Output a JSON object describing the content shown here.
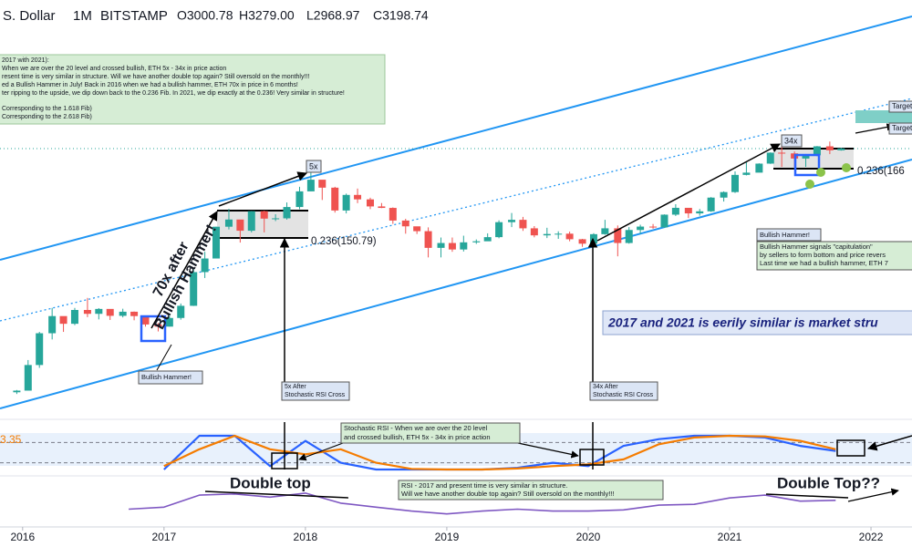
{
  "chart_data": {
    "type": "candlestick",
    "header": {
      "symbol": "S. Dollar",
      "interval": "1M",
      "exchange": "BITSTAMP",
      "ohlc": [
        "O3000.78",
        "H3279.00",
        "L2968.97",
        "C3198.74"
      ]
    },
    "log_scale": true,
    "ylim": [
      0.4,
      470000
    ],
    "xlim": [
      2015.84,
      2022.29
    ],
    "xticks": [
      2016,
      2017,
      2018,
      2019,
      2020,
      2021,
      2022
    ],
    "up_color": "#26a69a",
    "down_color": "#ef5350",
    "candles": {
      "x": [
        2015.92,
        2016.0,
        2016.08,
        2016.17,
        2016.25,
        2016.33,
        2016.42,
        2016.5,
        2016.58,
        2016.67,
        2016.75,
        2016.83,
        2016.92,
        2017.0,
        2017.08,
        2017.17,
        2017.25,
        2017.33,
        2017.42,
        2017.5,
        2017.58,
        2017.67,
        2017.75,
        2017.83,
        2017.92,
        2018.0,
        2018.08,
        2018.17,
        2018.25,
        2018.33,
        2018.42,
        2018.5,
        2018.58,
        2018.67,
        2018.75,
        2018.83,
        2018.92,
        2019.0,
        2019.08,
        2019.17,
        2019.25,
        2019.33,
        2019.42,
        2019.5,
        2019.58,
        2019.67,
        2019.75,
        2019.83,
        2019.92,
        2020.0,
        2020.08,
        2020.17,
        2020.25,
        2020.33,
        2020.42,
        2020.5,
        2020.58,
        2020.67,
        2020.75,
        2020.83,
        2020.92,
        2021.0,
        2021.08,
        2021.17,
        2021.25,
        2021.33,
        2021.42,
        2021.5,
        2021.58,
        2021.67,
        2021.75
      ],
      "open": [
        0.88,
        0.93,
        2.2,
        6.4,
        11.4,
        8.8,
        14.0,
        12.3,
        14.5,
        11.5,
        13.2,
        11.4,
        8.6,
        8.0,
        10.7,
        16.1,
        50,
        79,
        230,
        293,
        201,
        388,
        302,
        305,
        446,
        755,
        1118,
        855,
        397,
        670,
        577,
        455,
        433,
        283,
        233,
        198,
        113,
        133,
        107,
        136,
        141,
        162,
        268,
        290,
        218,
        172,
        180,
        182,
        151,
        130,
        179,
        218,
        133,
        206,
        231,
        225,
        345,
        434,
        360,
        386,
        612,
        737,
        1314,
        1417,
        1919,
        2773,
        2707,
        2275,
        2536,
        3433,
        3000.78
      ],
      "high": [
        0.95,
        2.6,
        6.7,
        15,
        9.6,
        15,
        21,
        14.9,
        12.8,
        14.6,
        13.3,
        11.4,
        9.0,
        11.5,
        17.4,
        55,
        99,
        230,
        420,
        250,
        390,
        395,
        350,
        520,
        880,
        1420,
        1000,
        880,
        700,
        830,
        610,
        510,
        440,
        300,
        230,
        225,
        160,
        160,
        170,
        150,
        184,
        285,
        365,
        320,
        235,
        222,
        197,
        195,
        153,
        185,
        290,
        240,
        227,
        246,
        252,
        348,
        490,
        395,
        418,
        623,
        755,
        1480,
        2040,
        1940,
        2800,
        4380,
        2890,
        2650,
        3470,
        4030,
        3279.0
      ],
      "low": [
        0.83,
        0.94,
        2.0,
        5.2,
        6.7,
        8.4,
        11,
        10.2,
        10,
        10.9,
        9.9,
        8,
        6.8,
        8,
        10.1,
        16,
        41,
        80,
        210,
        135,
        190,
        190,
        278,
        292,
        415,
        760,
        565,
        370,
        360,
        508,
        415,
        430,
        253,
        182,
        180,
        82,
        82,
        99,
        100,
        129,
        148,
        156,
        227,
        200,
        161,
        157,
        153,
        141,
        117,
        128,
        175,
        85,
        130,
        180,
        215,
        222,
        330,
        308,
        333,
        378,
        536,
        715,
        1290,
        1437,
        1900,
        1720,
        1720,
        1720,
        2460,
        2640,
        2968.97
      ],
      "close": [
        0.93,
        2.2,
        6.4,
        11.4,
        8.8,
        14.0,
        12.3,
        14.5,
        11.5,
        13.2,
        11.4,
        8.6,
        8.0,
        10.7,
        16.1,
        50,
        79,
        230,
        293,
        201,
        388,
        302,
        305,
        446,
        755,
        1118,
        855,
        397,
        670,
        577,
        455,
        433,
        283,
        233,
        198,
        113,
        133,
        107,
        136,
        141,
        162,
        268,
        290,
        218,
        172,
        180,
        182,
        151,
        130,
        179,
        218,
        133,
        206,
        231,
        225,
        345,
        434,
        360,
        386,
        612,
        737,
        1314,
        1417,
        1919,
        2773,
        2707,
        2275,
        2536,
        3433,
        3000.78,
        3198.74
      ]
    },
    "stoch_rsi": {
      "ylim": [
        0,
        100
      ],
      "levels": [
        80,
        20
      ],
      "x": [
        2017.0,
        2017.25,
        2017.5,
        2017.75,
        2018.0,
        2018.25,
        2018.5,
        2018.75,
        2019.0,
        2019.25,
        2019.5,
        2019.75,
        2020.0,
        2020.25,
        2020.5,
        2020.75,
        2021.0,
        2021.25,
        2021.5,
        2021.75
      ],
      "series": [
        {
          "color": "#2962ff",
          "values": [
            0,
            100,
            100,
            10,
            85,
            20,
            0,
            0,
            0,
            0,
            5,
            20,
            10,
            70,
            90,
            100,
            100,
            95,
            70,
            55
          ]
        },
        {
          "color": "#f57c00",
          "values": [
            10,
            60,
            100,
            60,
            45,
            60,
            20,
            2,
            0,
            0,
            3,
            10,
            15,
            30,
            75,
            95,
            100,
            98,
            85,
            60
          ]
        }
      ]
    },
    "rsi": {
      "ylim": [
        0,
        100
      ],
      "color": "#7e57c2",
      "x": [
        2016.75,
        2017.0,
        2017.25,
        2017.5,
        2017.75,
        2018.0,
        2018.25,
        2018.5,
        2018.75,
        2019.0,
        2019.25,
        2019.5,
        2019.75,
        2020.0,
        2020.25,
        2020.5,
        2020.75,
        2021.0,
        2021.25,
        2021.5,
        2021.75
      ],
      "values": [
        50,
        55,
        85,
        88,
        80,
        90,
        65,
        55,
        45,
        38,
        45,
        50,
        45,
        45,
        48,
        60,
        62,
        78,
        85,
        70,
        72
      ]
    },
    "annotations": {
      "note": [
        "2017 with 2021):",
        "When we are over the 20 level and crossed bullish, ETH 5x - 34x in price action",
        "resent time is very similar in structure. Will we have another double top again? Still oversold on the monthly!!!",
        "ed a Bullish Hammer in July! Back in 2016 when we had a bullish hammer, ETH 70x in price in 6 months!",
        "ter ripping to the upside, we dip down back to the 0.236 Fib. In 2021, we dip exactly at the 0.236! Very similar in structure!",
        "Corresponding to the 1.618 Fib)",
        "Corresponding to the 2.618 Fib)"
      ],
      "five_x": "5x",
      "thirty_four_x": "34x",
      "targets": [
        "Target",
        "Target"
      ],
      "fib_labels": [
        "0.236(150.79)",
        "0.236(166"
      ],
      "seventy_x": [
        "70x after",
        "Bullish Hammer!"
      ],
      "hammer_2016": "Bullish Hammer!",
      "cross_2017": [
        "5x After",
        "Stochastic RSI Cross"
      ],
      "cross_2020": [
        "34x After",
        "Stochastic RSI Cross"
      ],
      "hammer_2021": [
        "Bullish Hammer!",
        "Bullish Hammer signals \"capitulation\"",
        "by sellers to form bottom and price revers",
        "Last time we had a bullish hammer, ETH 7"
      ],
      "similar": "2017 and 2021 is eerily similar is market stru",
      "stoch_value": "3.35",
      "stoch_note": [
        "Stochastic RSI - When we are over the 20 level",
        "and crossed bullish, ETH 5x - 34x in price action"
      ],
      "double_top": "Double top",
      "double_top_q": "Double Top??",
      "rsi_note": [
        "RSI - 2017 and present time is very similar in structure.",
        "Will we have another double top again? Still oversold on the monthly!!!"
      ]
    }
  }
}
